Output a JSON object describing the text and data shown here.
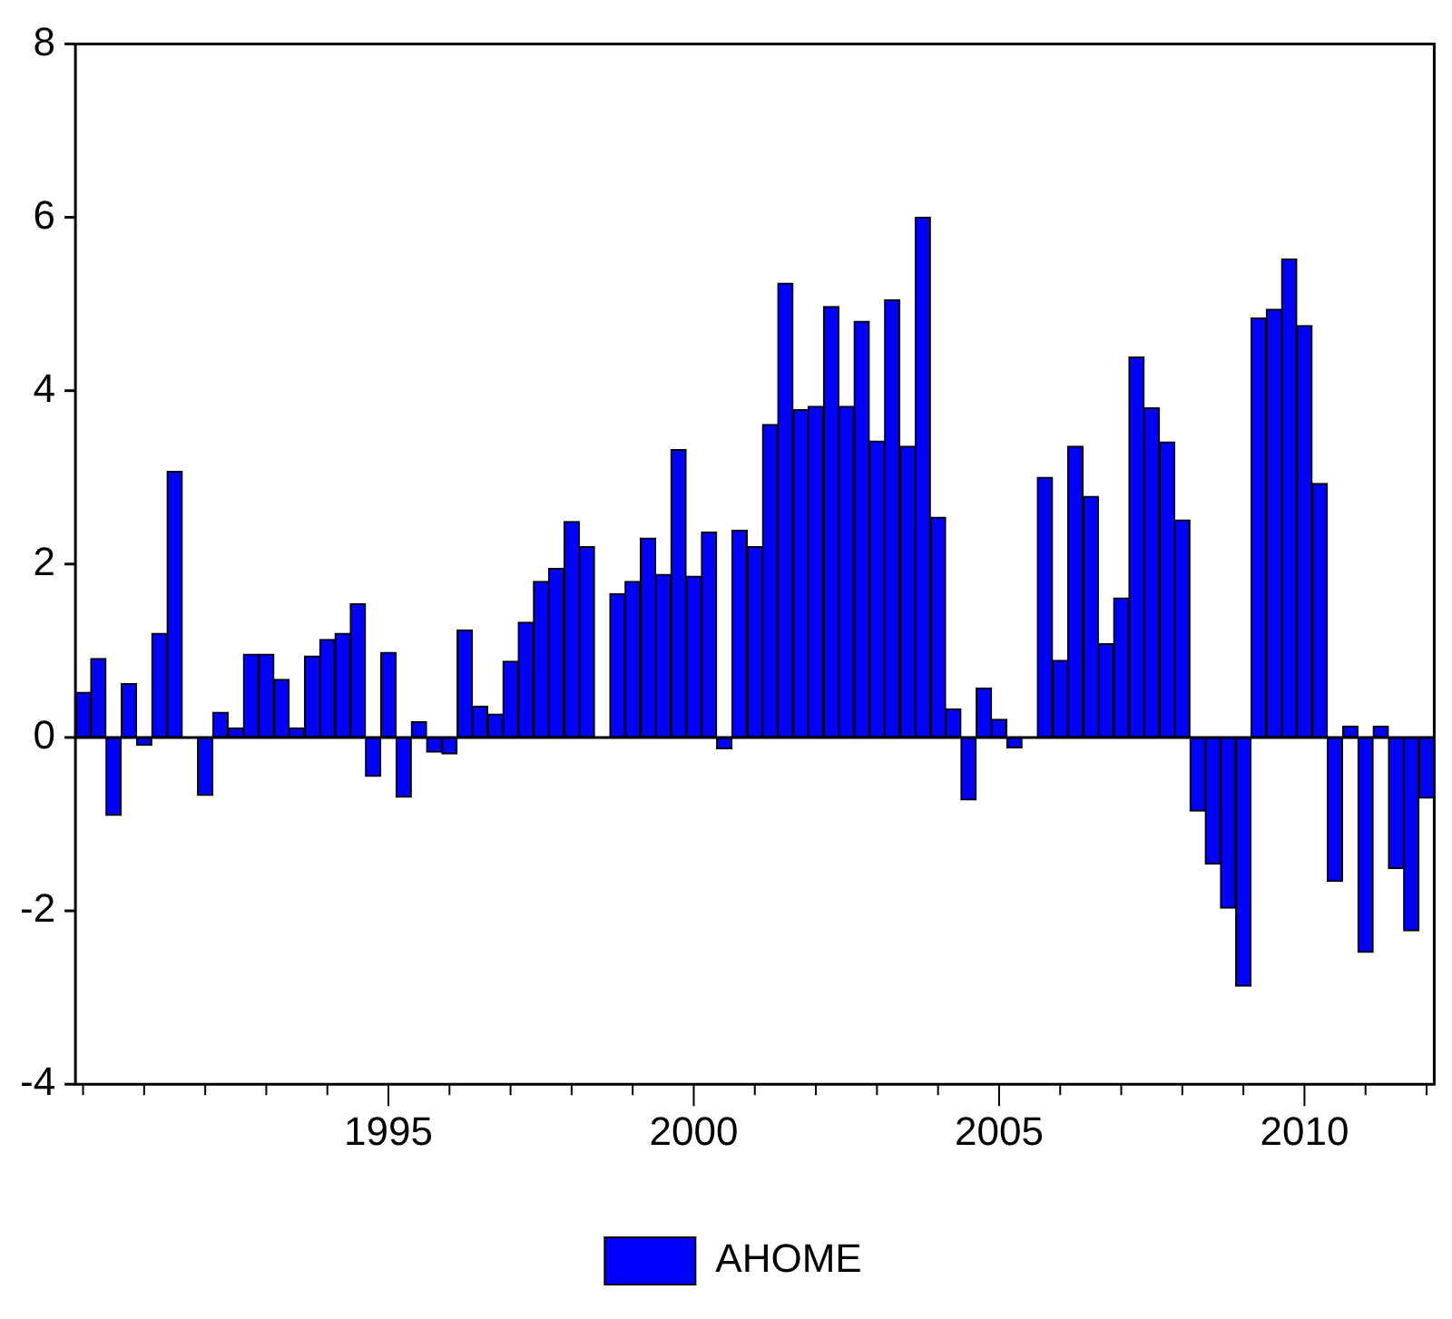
{
  "chart_data": {
    "type": "bar",
    "categories": [
      null,
      null,
      null,
      null,
      null,
      null,
      null,
      null,
      null,
      null,
      null,
      null,
      null,
      null,
      null,
      null,
      null,
      null,
      null,
      null,
      "1995",
      null,
      null,
      null,
      null,
      null,
      null,
      null,
      null,
      null,
      null,
      null,
      null,
      null,
      null,
      null,
      null,
      null,
      null,
      null,
      "2000",
      null,
      null,
      null,
      null,
      null,
      null,
      null,
      null,
      null,
      null,
      null,
      null,
      null,
      null,
      null,
      null,
      null,
      null,
      null,
      "2005",
      null,
      null,
      null,
      null,
      null,
      null,
      null,
      null,
      null,
      null,
      null,
      null,
      null,
      null,
      null,
      null,
      null,
      null,
      null,
      "2010",
      null,
      null,
      null,
      null,
      null,
      null,
      null,
      null
    ],
    "series": [
      {
        "name": "AHOME",
        "color": "#0000ff",
        "values": [
          0.52,
          0.91,
          -0.9,
          0.62,
          -0.09,
          1.2,
          3.07,
          0,
          -0.67,
          0.29,
          0.11,
          0.96,
          0.96,
          0.67,
          0.11,
          0.94,
          1.13,
          1.2,
          1.54,
          -0.45,
          0.98,
          -0.69,
          0.18,
          -0.17,
          -0.19,
          1.24,
          0.36,
          0.27,
          0.88,
          1.33,
          1.8,
          1.95,
          2.49,
          2.2,
          0,
          1.66,
          1.8,
          2.3,
          1.88,
          3.32,
          1.86,
          2.37,
          -0.13,
          2.39,
          2.2,
          3.61,
          5.24,
          3.78,
          3.82,
          4.97,
          3.82,
          4.8,
          3.42,
          5.05,
          3.36,
          6.0,
          2.54,
          0.33,
          -0.72,
          0.57,
          0.21,
          -0.12,
          0,
          3.0,
          0.89,
          3.36,
          2.78,
          1.08,
          1.61,
          4.39,
          3.8,
          3.41,
          2.51,
          -0.85,
          -1.46,
          -1.97,
          -2.87,
          4.84,
          4.94,
          5.52,
          4.75,
          2.93,
          -1.66,
          0.13,
          -2.48,
          0.13,
          -1.51,
          -2.23,
          -0.7
        ]
      }
    ],
    "ylim": [
      -4,
      8
    ],
    "yticks": [
      -4,
      -2,
      0,
      2,
      4,
      6,
      8
    ],
    "ref_lines": [
      {
        "axis": "y",
        "value": 0,
        "color": "#000000"
      }
    ],
    "grid": false,
    "legend": "bottom"
  }
}
